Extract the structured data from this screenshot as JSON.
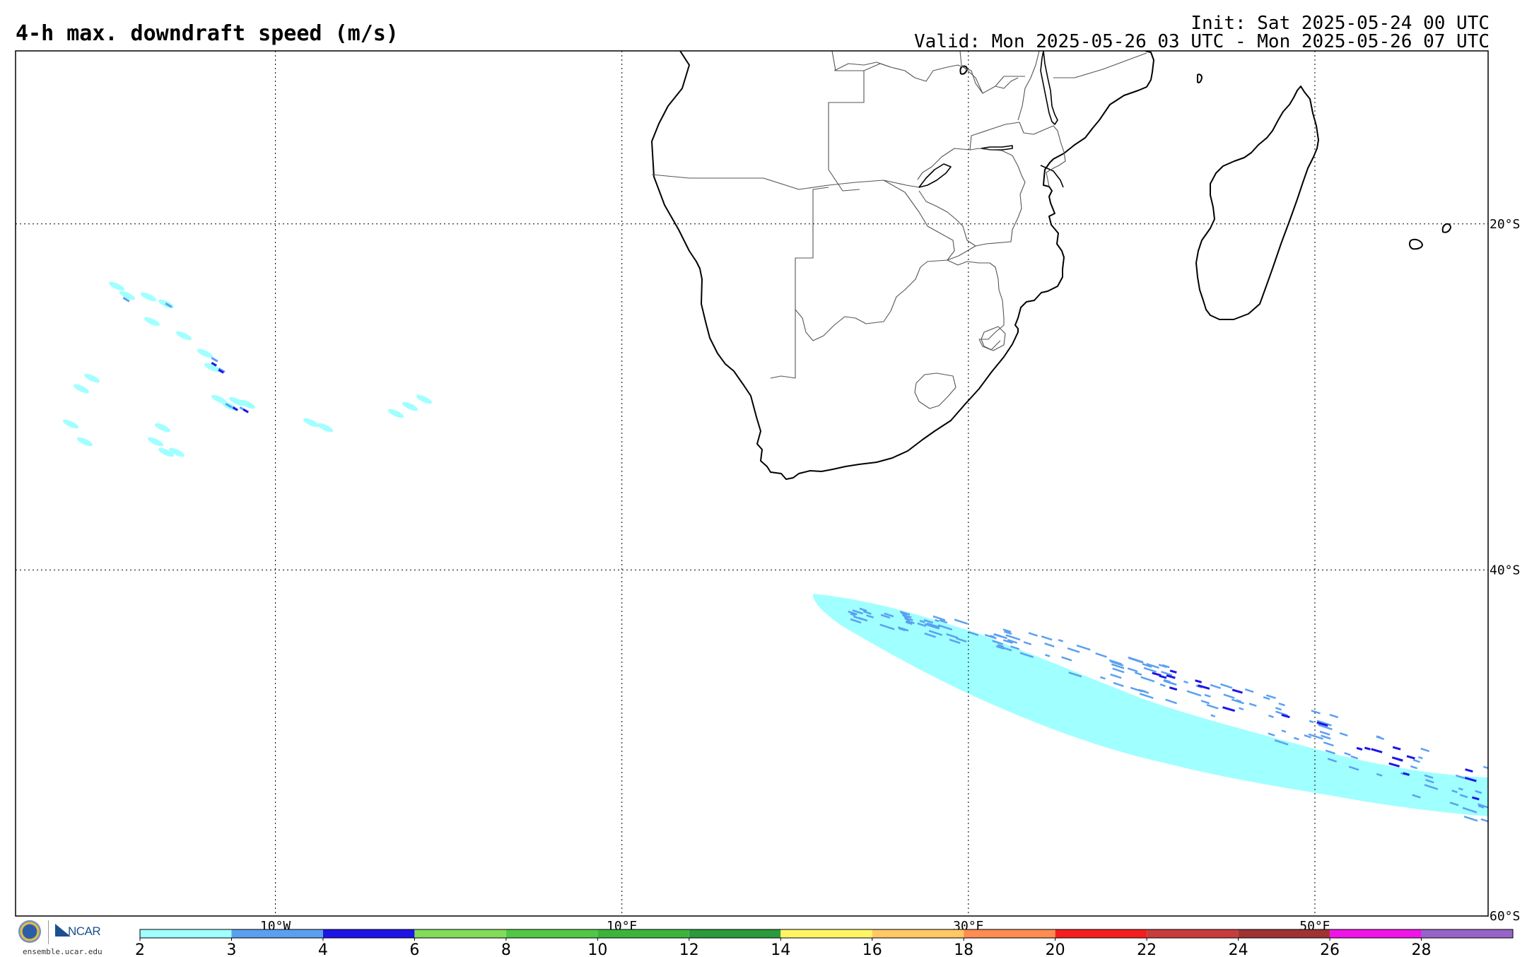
{
  "header": {
    "title": "4-h max. downdraft speed (m/s)",
    "init": "Init: Sat 2025-05-24 00 UTC",
    "valid": "Valid: Mon 2025-05-26 03 UTC - Mon 2025-05-26 07 UTC"
  },
  "map": {
    "lon_range": [
      -25,
      60
    ],
    "lat_range": [
      -60,
      -10
    ],
    "lon_ticks": [
      {
        "value": -10,
        "label": "10°W"
      },
      {
        "value": 10,
        "label": "10°E"
      },
      {
        "value": 30,
        "label": "30°E"
      },
      {
        "value": 50,
        "label": "50°E"
      }
    ],
    "lat_ticks": [
      {
        "value": -20,
        "label": "20°S"
      },
      {
        "value": -40,
        "label": "40°S"
      },
      {
        "value": -60,
        "label": "60°S"
      }
    ],
    "coastline_color": "#000000",
    "border_color": "#555555",
    "gridline_style": "dotted"
  },
  "colorbar": {
    "labels": [
      "2",
      "3",
      "4",
      "6",
      "8",
      "10",
      "12",
      "14",
      "16",
      "18",
      "20",
      "22",
      "24",
      "26",
      "28"
    ],
    "colors": [
      "#a0ffff",
      "#5aa0f0",
      "#1e14e6",
      "#82dc5a",
      "#50c846",
      "#3cb43c",
      "#2a9a3a",
      "#fff564",
      "#ffc864",
      "#ff8c50",
      "#f51e1e",
      "#c83c3c",
      "#a03232",
      "#f014e6",
      "#9664c8"
    ]
  },
  "logos": {
    "nsf_alt": "NSF",
    "ncar_text": "NCAR",
    "credit": "ensemble.ucar.edu"
  }
}
